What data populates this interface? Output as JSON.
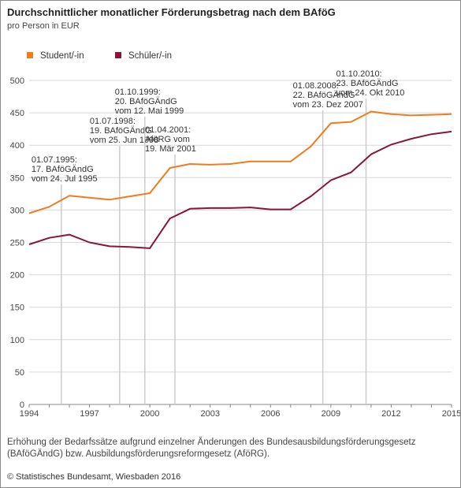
{
  "title": "Durchschnittlicher monatlicher Förderungsbetrag nach dem BAföG",
  "subtitle": "pro Person in EUR",
  "footnote": "Erhöhung der Bedarfssätze aufgrund einzelner Änderungen des Bundesausbildungsförderungsgesetz (BAföGÄndG) bzw. Ausbildungsförderungsreformgesetz (AföRG).",
  "source": "© Statistisches Bundesamt, Wiesbaden 2016",
  "colors": {
    "student": "#f07c1e",
    "schueler": "#8a1538",
    "grid": "#d8d8d8",
    "marker": "#cccccc"
  },
  "chart_data": {
    "type": "line",
    "x": [
      1994,
      1995,
      1996,
      1997,
      1998,
      1999,
      2000,
      2001,
      2002,
      2003,
      2004,
      2005,
      2006,
      2007,
      2008,
      2009,
      2010,
      2011,
      2012,
      2013,
      2014,
      2015
    ],
    "series": [
      {
        "name": "Student/-in",
        "color": "#f07c1e",
        "values": [
          295,
          305,
          322,
          319,
          316,
          321,
          326,
          365,
          371,
          370,
          371,
          375,
          375,
          375,
          398,
          434,
          436,
          452,
          448,
          446,
          447,
          448
        ]
      },
      {
        "name": "Schüler/-in",
        "color": "#8a1538",
        "values": [
          247,
          257,
          262,
          250,
          244,
          243,
          241,
          287,
          302,
          303,
          303,
          304,
          301,
          301,
          321,
          346,
          358,
          386,
          401,
          410,
          417,
          421
        ]
      }
    ],
    "xticks": [
      1994,
      1997,
      2000,
      2003,
      2006,
      2009,
      2012,
      2015
    ],
    "yticks": [
      0,
      50,
      100,
      150,
      200,
      250,
      300,
      350,
      400,
      450,
      500
    ],
    "xlim": [
      1994,
      2015
    ],
    "ylim": [
      0,
      500
    ],
    "grid": "horizontal",
    "legend": "top-left",
    "annotations": [
      {
        "x": 1995.6,
        "lines": [
          "01.07.1995:",
          "17. BAföGÄndG",
          "vom 24. Jul 1995"
        ]
      },
      {
        "x": 1998.5,
        "lines": [
          "01.07.1998:",
          "19. BAföGÄndG",
          "vom 25. Jun 1998"
        ]
      },
      {
        "x": 1999.75,
        "lines": [
          "01.10.1999:",
          "20. BAföGÄndG",
          "vom 12. Mai 1999"
        ]
      },
      {
        "x": 2001.25,
        "lines": [
          "01.04.2001:",
          "AföRG vom",
          "19. Mär 2001"
        ]
      },
      {
        "x": 2008.6,
        "lines": [
          "01.08.2008:",
          "22. BAföGÄndG",
          "vom 23. Dez 2007"
        ]
      },
      {
        "x": 2010.75,
        "lines": [
          "01.10.2010:",
          "23. BAföGÄndG",
          "vom 24. Okt 2010"
        ]
      }
    ]
  }
}
